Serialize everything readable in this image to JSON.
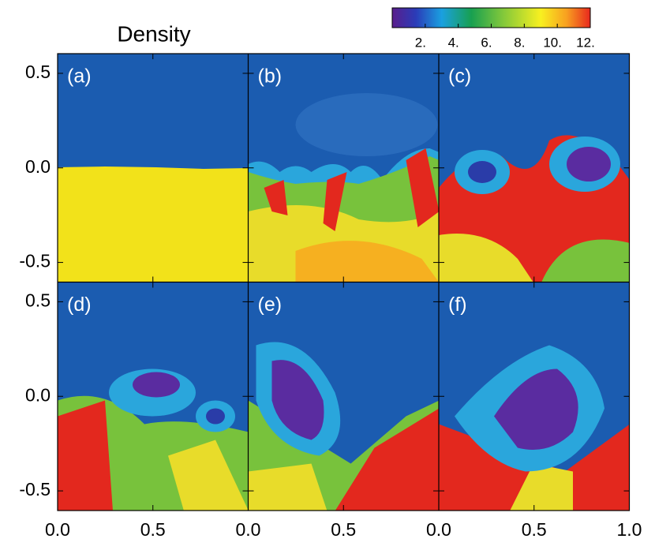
{
  "title": "Density",
  "colorbar": {
    "lim": [
      0,
      12
    ],
    "ticks": [
      {
        "value": 2,
        "label": "2."
      },
      {
        "value": 4,
        "label": "4."
      },
      {
        "value": 6,
        "label": "6."
      },
      {
        "value": 8,
        "label": "8."
      },
      {
        "value": 10,
        "label": "10."
      },
      {
        "value": 12,
        "label": "12."
      }
    ]
  },
  "xlim": [
    0,
    1
  ],
  "ylim": [
    -0.604,
    0.604
  ],
  "columns": [
    {
      "xticks": [
        {
          "value": 0,
          "label": "0.0"
        },
        0.5
      ]
    },
    {
      "xticks": [
        {
          "value": 0,
          "label": "0.0"
        },
        0.5
      ]
    },
    {
      "xticks": [
        {
          "value": 0,
          "label": "0.0"
        },
        0.5,
        {
          "value": 1,
          "label": "1.0"
        }
      ]
    }
  ],
  "rows": [
    {
      "yticks": [
        0.5,
        {
          "value": 0,
          "label": "0.0"
        },
        -0.5
      ]
    },
    {
      "yticks": [
        0.5,
        {
          "value": 0,
          "label": "0.0"
        },
        -0.5
      ]
    }
  ],
  "panels": [
    {
      "label": "(a)"
    },
    {
      "label": "(b)"
    },
    {
      "label": "(c)"
    },
    {
      "label": "(d)"
    },
    {
      "label": "(e)"
    },
    {
      "label": "(f)"
    }
  ]
}
